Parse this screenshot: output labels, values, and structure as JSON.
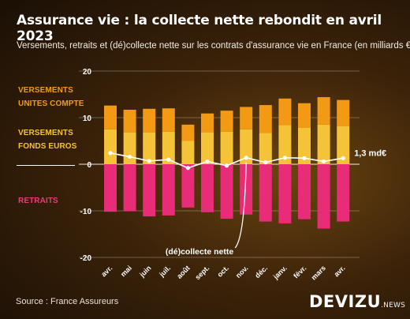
{
  "title": "Assurance vie : la collecte nette rebondit en avril 2023",
  "subtitle": "Versements, retraits et (dé)collecte nette sur les contrats d'assurance vie en France (en milliards €)",
  "legend": {
    "uc_line1": "VERSEMENTS",
    "uc_line2": "UNITES COMPTE",
    "fe_line1": "VERSEMENTS",
    "fe_line2": "FONDS EUROS",
    "retraits": "RETRAITS"
  },
  "source": "Source : France Assureurs",
  "brand": {
    "name": "DEVIZU",
    "suffix": ".NEWS"
  },
  "colors": {
    "unites_compte": "#f29a14",
    "fonds_euros": "#f5c338",
    "retraits": "#e92c78",
    "collecte_line": "#ffffff",
    "grid": "#ffffff"
  },
  "chart_data": {
    "type": "bar",
    "stacked": true,
    "categories": [
      "avr.",
      "mai",
      "juin",
      "juil.",
      "août",
      "sept.",
      "oct.",
      "nov.",
      "déc.",
      "janv.",
      "févr.",
      "mars",
      "avr."
    ],
    "series": [
      {
        "name": "VERSEMENTS FONDS EUROS",
        "values": [
          7.5,
          6.9,
          6.9,
          7.0,
          5.0,
          6.9,
          7.0,
          7.5,
          6.7,
          8.4,
          7.8,
          8.5,
          8.2
        ]
      },
      {
        "name": "VERSEMENTS UNITES COMPTE",
        "values": [
          5.1,
          4.8,
          5.0,
          5.0,
          3.5,
          4.0,
          4.5,
          4.8,
          6.0,
          5.7,
          5.3,
          5.9,
          5.6
        ]
      },
      {
        "name": "RETRAITS",
        "values": [
          -10.2,
          -10.1,
          -11.2,
          -11.0,
          -9.3,
          -10.3,
          -11.7,
          -10.8,
          -12.3,
          -12.7,
          -11.8,
          -13.8,
          -12.3
        ]
      },
      {
        "name": "(dé)collecte nette",
        "values": [
          2.4,
          1.6,
          0.7,
          1.0,
          -0.8,
          0.6,
          -0.3,
          1.4,
          0.4,
          1.4,
          1.3,
          0.6,
          1.3
        ]
      }
    ],
    "yticks": [
      20,
      10,
      0,
      -10,
      -20
    ],
    "ylim": [
      -20,
      20
    ],
    "grid": true,
    "annotations": {
      "last_value": "1,3 md€",
      "line_label": "(dé)collecte nette"
    }
  }
}
